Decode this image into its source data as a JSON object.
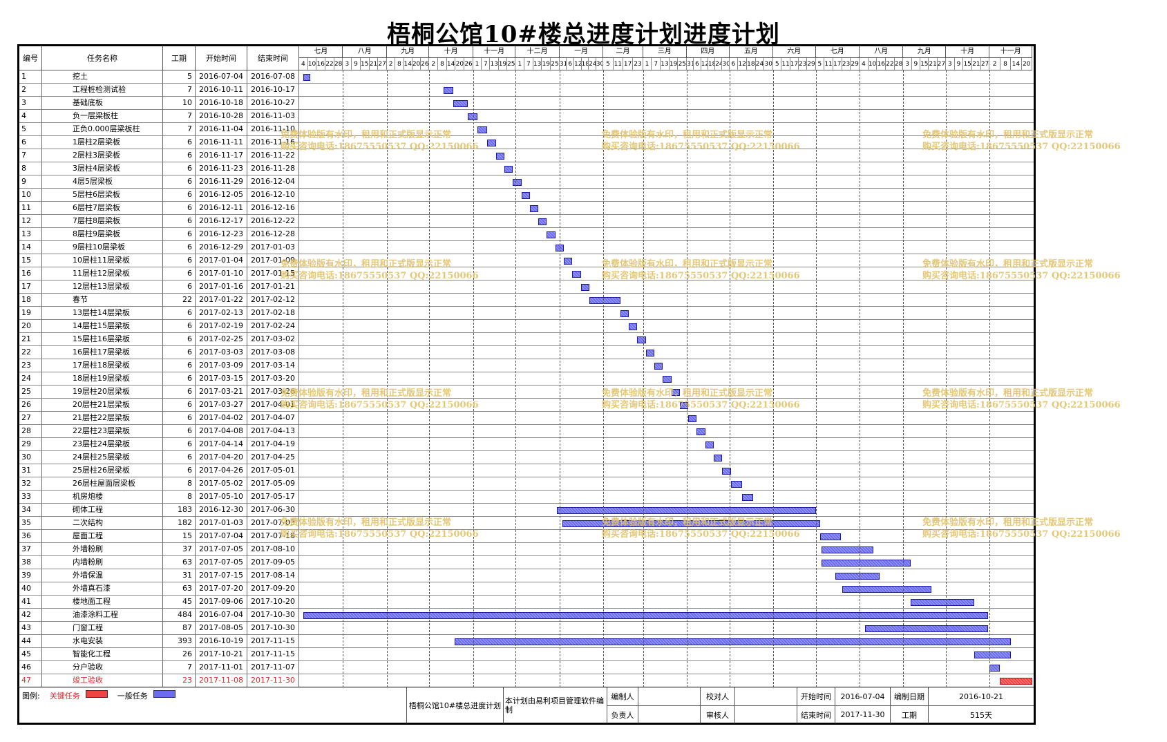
{
  "title": "梧桐公馆10#楼总进度计划进度计划",
  "columns": {
    "id": "编号",
    "name": "任务名称",
    "duration": "工期",
    "start": "开始时间",
    "end": "结束时间"
  },
  "months": [
    {
      "label": "七月",
      "days": [
        "4",
        "10",
        "16",
        "22",
        "28"
      ]
    },
    {
      "label": "八月",
      "days": [
        "3",
        "9",
        "15",
        "21",
        "27"
      ]
    },
    {
      "label": "九月",
      "days": [
        "2",
        "8",
        "14",
        "20",
        "26"
      ]
    },
    {
      "label": "十月",
      "days": [
        "2",
        "8",
        "14",
        "20",
        "26"
      ]
    },
    {
      "label": "十一月",
      "days": [
        "1",
        "7",
        "13",
        "19",
        "25"
      ]
    },
    {
      "label": "十二月",
      "days": [
        "1",
        "7",
        "13",
        "19",
        "25"
      ]
    },
    {
      "label": "一月",
      "days": [
        "31",
        "6",
        "12",
        "18",
        "24",
        "30"
      ]
    },
    {
      "label": "二月",
      "days": [
        "5",
        "11",
        "17",
        "23"
      ]
    },
    {
      "label": "三月",
      "days": [
        "1",
        "7",
        "13",
        "19",
        "25"
      ]
    },
    {
      "label": "四月",
      "days": [
        "31",
        "6",
        "12",
        "18",
        "24",
        "30"
      ]
    },
    {
      "label": "五月",
      "days": [
        "6",
        "12",
        "18",
        "24",
        "30"
      ]
    },
    {
      "label": "六月",
      "days": [
        "5",
        "11",
        "17",
        "23",
        "29"
      ]
    },
    {
      "label": "七月",
      "days": [
        "5",
        "11",
        "17",
        "23",
        "29"
      ]
    },
    {
      "label": "八月",
      "days": [
        "4",
        "10",
        "16",
        "22",
        "28"
      ]
    },
    {
      "label": "九月",
      "days": [
        "3",
        "9",
        "15",
        "21",
        "27"
      ]
    },
    {
      "label": "十月",
      "days": [
        "3",
        "9",
        "15",
        "21",
        "27"
      ]
    },
    {
      "label": "十一月",
      "days": [
        "2",
        "8",
        "14",
        "20"
      ]
    }
  ],
  "tasks": [
    {
      "id": "1",
      "name": "挖土",
      "dur": "5",
      "start": "2016-07-04",
      "end": "2016-07-08"
    },
    {
      "id": "2",
      "name": "工程桩检测试验",
      "dur": "7",
      "start": "2016-10-11",
      "end": "2016-10-17"
    },
    {
      "id": "3",
      "name": "基础底板",
      "dur": "10",
      "start": "2016-10-18",
      "end": "2016-10-27"
    },
    {
      "id": "4",
      "name": "负一层梁板柱",
      "dur": "7",
      "start": "2016-10-28",
      "end": "2016-11-03"
    },
    {
      "id": "5",
      "name": "正负0.000层梁板柱",
      "dur": "7",
      "start": "2016-11-04",
      "end": "2016-11-10"
    },
    {
      "id": "6",
      "name": "1层柱2层梁板",
      "dur": "6",
      "start": "2016-11-11",
      "end": "2016-11-16"
    },
    {
      "id": "7",
      "name": "2层柱3层梁板",
      "dur": "6",
      "start": "2016-11-17",
      "end": "2016-11-22"
    },
    {
      "id": "8",
      "name": "3层柱4层梁板",
      "dur": "6",
      "start": "2016-11-23",
      "end": "2016-11-28"
    },
    {
      "id": "9",
      "name": "4层5层梁板",
      "dur": "6",
      "start": "2016-11-29",
      "end": "2016-12-04"
    },
    {
      "id": "10",
      "name": "5层柱6层梁板",
      "dur": "6",
      "start": "2016-12-05",
      "end": "2016-12-10"
    },
    {
      "id": "11",
      "name": "6层柱7层梁板",
      "dur": "6",
      "start": "2016-12-11",
      "end": "2016-12-16"
    },
    {
      "id": "12",
      "name": "7层柱8层梁板",
      "dur": "6",
      "start": "2016-12-17",
      "end": "2016-12-22"
    },
    {
      "id": "13",
      "name": "8层柱9层梁板",
      "dur": "6",
      "start": "2016-12-23",
      "end": "2016-12-28"
    },
    {
      "id": "14",
      "name": "9层柱10层梁板",
      "dur": "6",
      "start": "2016-12-29",
      "end": "2017-01-03"
    },
    {
      "id": "15",
      "name": "10层柱11层梁板",
      "dur": "6",
      "start": "2017-01-04",
      "end": "2017-01-09"
    },
    {
      "id": "16",
      "name": "11层柱12层梁板",
      "dur": "6",
      "start": "2017-01-10",
      "end": "2017-01-15"
    },
    {
      "id": "17",
      "name": "12层柱13层梁板",
      "dur": "6",
      "start": "2017-01-16",
      "end": "2017-01-21"
    },
    {
      "id": "18",
      "name": "春节",
      "dur": "22",
      "start": "2017-01-22",
      "end": "2017-02-12"
    },
    {
      "id": "19",
      "name": "13层柱14层梁板",
      "dur": "6",
      "start": "2017-02-13",
      "end": "2017-02-18"
    },
    {
      "id": "20",
      "name": "14层柱15层梁板",
      "dur": "6",
      "start": "2017-02-19",
      "end": "2017-02-24"
    },
    {
      "id": "21",
      "name": "15层柱16层梁板",
      "dur": "6",
      "start": "2017-02-25",
      "end": "2017-03-02"
    },
    {
      "id": "22",
      "name": "16层柱17层梁板",
      "dur": "6",
      "start": "2017-03-03",
      "end": "2017-03-08"
    },
    {
      "id": "23",
      "name": "17层柱18层梁板",
      "dur": "6",
      "start": "2017-03-09",
      "end": "2017-03-14"
    },
    {
      "id": "24",
      "name": "18层柱19层梁板",
      "dur": "6",
      "start": "2017-03-15",
      "end": "2017-03-20"
    },
    {
      "id": "25",
      "name": "19层柱20层梁板",
      "dur": "6",
      "start": "2017-03-21",
      "end": "2017-03-26"
    },
    {
      "id": "26",
      "name": "20层柱21层梁板",
      "dur": "6",
      "start": "2017-03-27",
      "end": "2017-04-01"
    },
    {
      "id": "27",
      "name": "21层柱22层梁板",
      "dur": "6",
      "start": "2017-04-02",
      "end": "2017-04-07"
    },
    {
      "id": "28",
      "name": "22层柱23层梁板",
      "dur": "6",
      "start": "2017-04-08",
      "end": "2017-04-13"
    },
    {
      "id": "29",
      "name": "23层柱24层梁板",
      "dur": "6",
      "start": "2017-04-14",
      "end": "2017-04-19"
    },
    {
      "id": "30",
      "name": "24层柱25层梁板",
      "dur": "6",
      "start": "2017-04-20",
      "end": "2017-04-25"
    },
    {
      "id": "31",
      "name": "25层柱26层梁板",
      "dur": "6",
      "start": "2017-04-26",
      "end": "2017-05-01"
    },
    {
      "id": "32",
      "name": "26层柱屋面层梁板",
      "dur": "8",
      "start": "2017-05-02",
      "end": "2017-05-09"
    },
    {
      "id": "33",
      "name": "机房炮楼",
      "dur": "8",
      "start": "2017-05-10",
      "end": "2017-05-17"
    },
    {
      "id": "34",
      "name": "砌体工程",
      "dur": "183",
      "start": "2016-12-30",
      "end": "2017-06-30"
    },
    {
      "id": "35",
      "name": "二次结构",
      "dur": "182",
      "start": "2017-01-03",
      "end": "2017-07-03"
    },
    {
      "id": "36",
      "name": "屋面工程",
      "dur": "15",
      "start": "2017-07-04",
      "end": "2017-07-18"
    },
    {
      "id": "37",
      "name": "外墙粉刷",
      "dur": "37",
      "start": "2017-07-05",
      "end": "2017-08-10"
    },
    {
      "id": "38",
      "name": "内墙粉刷",
      "dur": "63",
      "start": "2017-07-05",
      "end": "2017-09-05"
    },
    {
      "id": "39",
      "name": "外墙保温",
      "dur": "31",
      "start": "2017-07-15",
      "end": "2017-08-14"
    },
    {
      "id": "40",
      "name": "外墙真石漆",
      "dur": "63",
      "start": "2017-07-20",
      "end": "2017-09-20"
    },
    {
      "id": "41",
      "name": "楼地面工程",
      "dur": "45",
      "start": "2017-09-06",
      "end": "2017-10-20"
    },
    {
      "id": "42",
      "name": "油漆涂料工程",
      "dur": "484",
      "start": "2016-07-04",
      "end": "2017-10-30"
    },
    {
      "id": "43",
      "name": "门窗工程",
      "dur": "87",
      "start": "2017-08-05",
      "end": "2017-10-30"
    },
    {
      "id": "44",
      "name": "水电安装",
      "dur": "393",
      "start": "2016-10-19",
      "end": "2017-11-15"
    },
    {
      "id": "45",
      "name": "智能化工程",
      "dur": "26",
      "start": "2017-10-21",
      "end": "2017-11-15"
    },
    {
      "id": "46",
      "name": "分户验收",
      "dur": "7",
      "start": "2017-11-01",
      "end": "2017-11-07"
    },
    {
      "id": "47",
      "name": "竣工验收",
      "dur": "23",
      "start": "2017-11-08",
      "end": "2017-11-30",
      "critical": true
    }
  ],
  "watermark": {
    "line1": "免费体验版有水印，租用和正式版显示正常",
    "line2": "购买咨询电话:18675550537 QQ:22150066"
  },
  "footer": {
    "legend_label": "图例:",
    "critical_label": "关键任务",
    "normal_label": "一般任务",
    "plan_name": "梧桐公馆10#楼总进度计划",
    "software_note": "本计划由易利项目管理软件编制",
    "compiler_label": "编制人",
    "checker_label": "校对人",
    "responsible_label": "负责人",
    "reviewer_label": "审核人",
    "start_label": "开始时间",
    "start_value": "2016-07-04",
    "end_label": "结束时间",
    "end_value": "2017-11-30",
    "date_label": "编制日期",
    "date_value": "2016-10-21",
    "duration_label": "工期",
    "duration_value": "515天"
  },
  "colors": {
    "normal_bar": "#6b6cf0",
    "critical_bar": "#ee4444",
    "critical_text": "#e0262a",
    "watermark": "#e2c36a"
  }
}
